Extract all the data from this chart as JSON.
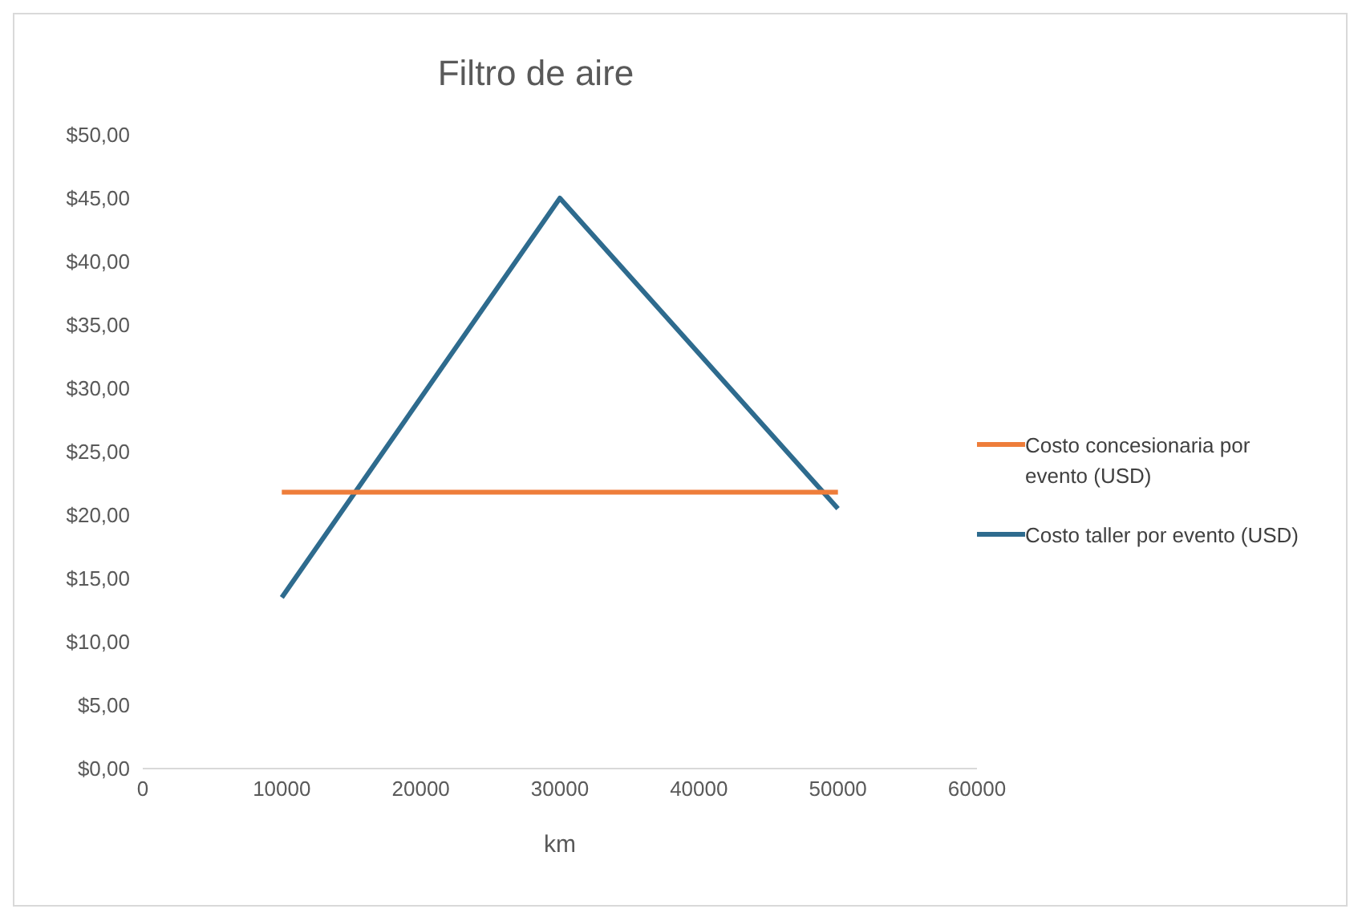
{
  "chart_data": {
    "type": "line",
    "title": "Filtro de aire",
    "xlabel": "km",
    "x": [
      10000,
      30000,
      50000
    ],
    "series": [
      {
        "name": "Costo taller por evento (USD)",
        "color": "#2e6b8e",
        "values": [
          13.5,
          45,
          20.5
        ]
      },
      {
        "name": "Costo concesionaria por evento (USD)",
        "color": "#ee7d3a",
        "values": [
          21.8,
          21.8,
          21.8
        ]
      }
    ],
    "xlim": [
      0,
      60000
    ],
    "xticks": [
      0,
      10000,
      20000,
      30000,
      40000,
      50000,
      60000
    ],
    "ylim": [
      0,
      50
    ],
    "yticks": [
      {
        "value": 0,
        "label": "$0,00"
      },
      {
        "value": 5,
        "label": "$5,00"
      },
      {
        "value": 10,
        "label": "$10,00"
      },
      {
        "value": 15,
        "label": "$15,00"
      },
      {
        "value": 20,
        "label": "$20,00"
      },
      {
        "value": 25,
        "label": "$25,00"
      },
      {
        "value": 30,
        "label": "$30,00"
      },
      {
        "value": 35,
        "label": "$35,00"
      },
      {
        "value": 40,
        "label": "$40,00"
      },
      {
        "value": 45,
        "label": "$45,00"
      },
      {
        "value": 50,
        "label": "$50,00"
      }
    ],
    "grid": false,
    "legend": "right",
    "marker": "none",
    "line_style": "solid"
  }
}
